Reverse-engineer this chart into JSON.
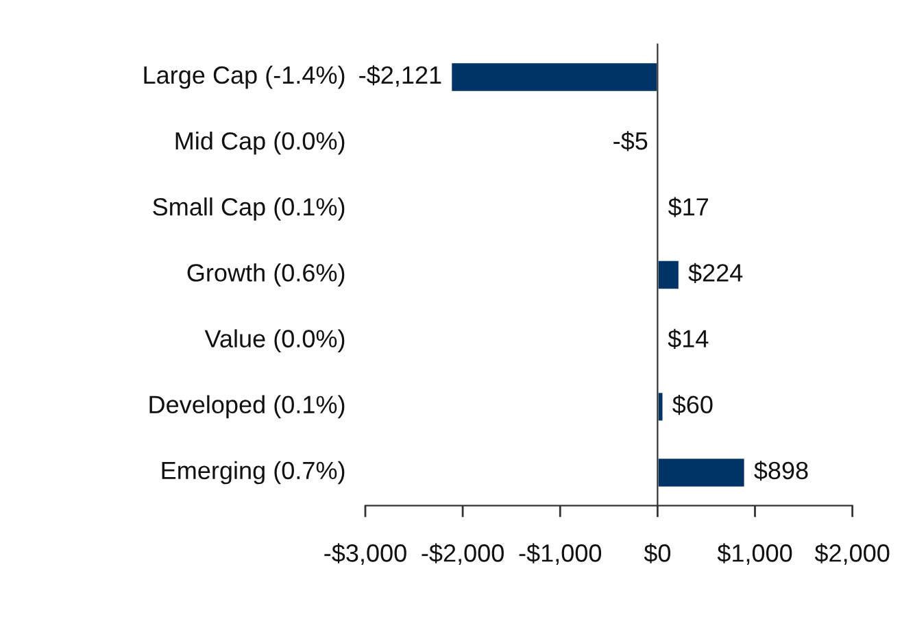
{
  "chart_data": {
    "type": "bar",
    "orientation": "horizontal",
    "categories": [
      "Large Cap (-1.4%)",
      "Mid Cap (0.0%)",
      "Small Cap (0.1%)",
      "Growth (0.6%)",
      "Value (0.0%)",
      "Developed (0.1%)",
      "Emerging (0.7%)"
    ],
    "values": [
      -2121,
      -5,
      17,
      224,
      14,
      60,
      898
    ],
    "value_labels": [
      "-$2,121",
      "-$5",
      "$17",
      "$224",
      "$14",
      "$60",
      "$898"
    ],
    "color": "#003366",
    "xlim": [
      -3000,
      2000
    ],
    "xticks": [
      {
        "value": -3000,
        "label": "-$3,000"
      },
      {
        "value": -2000,
        "label": "-$2,000"
      },
      {
        "value": -1000,
        "label": "-$1,000"
      },
      {
        "value": 0,
        "label": "$0"
      },
      {
        "value": 1000,
        "label": "$1,000"
      },
      {
        "value": 2000,
        "label": "$2,000"
      }
    ],
    "legend": false
  }
}
